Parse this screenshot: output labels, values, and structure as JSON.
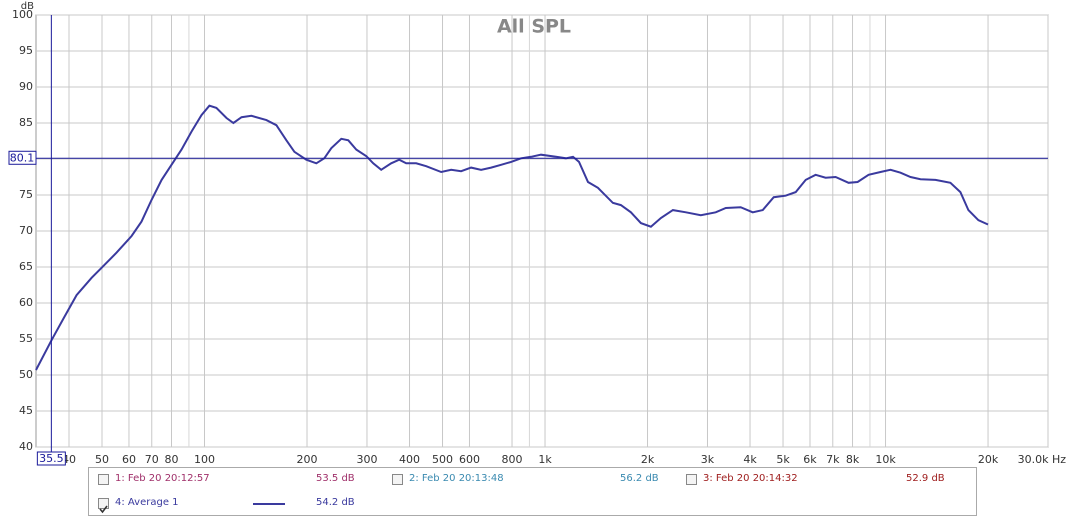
{
  "chart_data": {
    "type": "line",
    "title": "All SPL",
    "y_label": "dB",
    "log_x": true,
    "grid": true,
    "x": [
      32,
      35.6,
      38.6,
      42.1,
      46.6,
      49.9,
      55.2,
      61.1,
      65.3,
      69.9,
      74.8,
      80,
      85.6,
      91.6,
      98,
      103.4,
      108.4,
      116,
      121.6,
      128.4,
      137.3,
      152,
      162.6,
      174,
      183.6,
      199.1,
      213,
      224.8,
      235.7,
      252.2,
      264.4,
      279.1,
      298.6,
      313,
      330.4,
      353.5,
      373.1,
      391.2,
      418.4,
      447.7,
      495.5,
      530.1,
      567.1,
      606.8,
      649.2,
      694.5,
      743,
      795,
      850.5,
      909.9,
      973.4,
      1077,
      1152,
      1208,
      1258,
      1337,
      1430,
      1583,
      1671,
      1787,
      1912,
      2046,
      2189,
      2374,
      2592,
      2867,
      3172,
      3395,
      3756,
      4074,
      4358,
      4694,
      5089,
      5446,
      5827,
      6233,
      6668,
      7135,
      7790,
      8277,
      8918,
      9668,
      10344,
      11066,
      11838,
      12665,
      14016,
      15510,
      16596,
      17516,
      18743,
      20000
    ],
    "series": [
      {
        "name": "4: Average 1",
        "color": "#3a3a9e",
        "values": [
          50.7,
          54.9,
          57.9,
          61.1,
          63.5,
          64.9,
          67,
          69.3,
          71.3,
          74.3,
          77.1,
          79.2,
          81.3,
          83.8,
          86.1,
          87.4,
          87.1,
          85.7,
          85,
          85.8,
          86,
          85.4,
          84.7,
          82.6,
          81,
          79.9,
          79.4,
          80.1,
          81.5,
          82.8,
          82.6,
          81.3,
          80.4,
          79.4,
          78.5,
          79.4,
          79.9,
          79.4,
          79.4,
          79,
          78.2,
          78.5,
          78.3,
          78.8,
          78.5,
          78.8,
          79.2,
          79.6,
          80.1,
          80.3,
          80.6,
          80.3,
          80.1,
          80.3,
          79.6,
          76.8,
          76,
          73.9,
          73.6,
          72.6,
          71.1,
          70.6,
          71.8,
          72.9,
          72.6,
          72.2,
          72.6,
          73.2,
          73.3,
          72.6,
          72.9,
          74.7,
          74.9,
          75.4,
          77.1,
          77.8,
          77.4,
          77.5,
          76.7,
          76.8,
          77.8,
          78.2,
          78.5,
          78.1,
          77.5,
          77.2,
          77.1,
          76.7,
          75.4,
          72.9,
          71.5,
          70.9
        ]
      }
    ],
    "xlim": [
      32,
      30000
    ],
    "ylim": [
      40,
      100
    ],
    "xticks": [
      40,
      50,
      60,
      70,
      80,
      100,
      200,
      300,
      400,
      500,
      600,
      800,
      {
        "value": 1000,
        "label": "1k"
      },
      {
        "value": 2000,
        "label": "2k"
      },
      {
        "value": 3000,
        "label": "3k"
      },
      {
        "value": 4000,
        "label": "4k"
      },
      {
        "value": 5000,
        "label": "5k"
      },
      {
        "value": 6000,
        "label": "6k"
      },
      {
        "value": 7000,
        "label": "7k"
      },
      {
        "value": 8000,
        "label": "8k"
      },
      {
        "value": 10000,
        "label": "10k"
      },
      {
        "value": 20000,
        "label": "20k"
      },
      {
        "value": 30000,
        "label": "30.0k Hz"
      }
    ],
    "xgrid_minor": [
      90,
      900,
      9000
    ],
    "yticks": [
      40,
      45,
      50,
      55,
      60,
      65,
      70,
      75,
      80,
      85,
      90,
      95,
      100
    ],
    "cursor": {
      "x": 35.5,
      "y": 80.1,
      "color": "#1a1a9a"
    }
  },
  "legend_panel": {
    "items": [
      {
        "label": "1: Feb 20 20:12:57",
        "reading": "53.5 dB",
        "color": "#a0306a",
        "checked": false
      },
      {
        "label": "2: Feb 20 20:13:48",
        "reading": "56.2 dB",
        "color": "#3a8ab0",
        "checked": false
      },
      {
        "label": "3: Feb 20 20:14:32",
        "reading": "52.9 dB",
        "color": "#a02020",
        "checked": false
      },
      {
        "label": "4: Average 1",
        "reading": "54.2 dB",
        "color": "#3a3a9e",
        "checked": true
      }
    ]
  }
}
